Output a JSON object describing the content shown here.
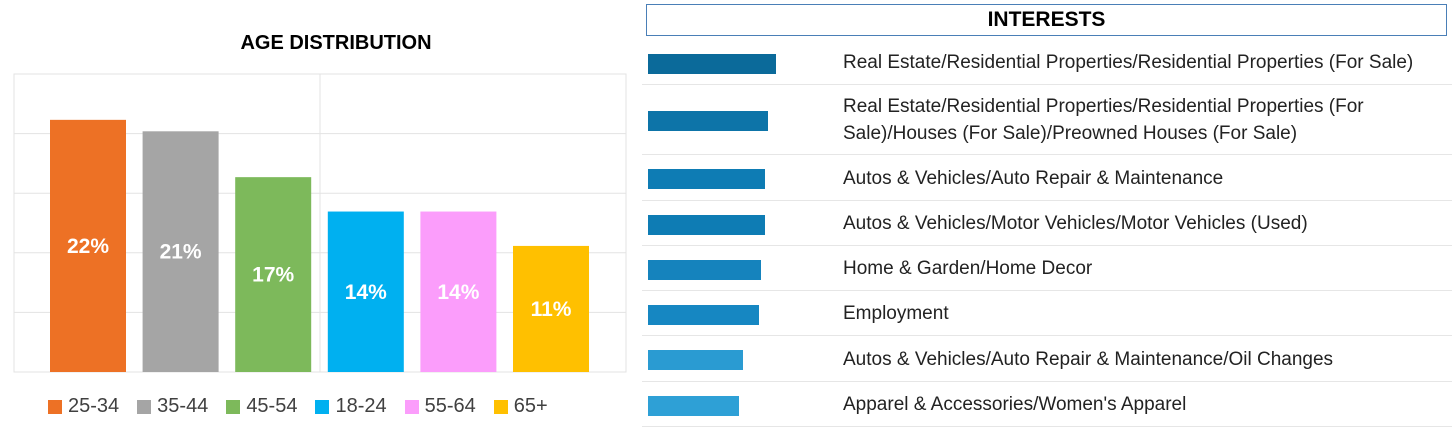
{
  "chart_data": [
    {
      "type": "bar",
      "title": "AGE DISTRIBUTION",
      "categories": [
        "25-34",
        "35-44",
        "45-54",
        "18-24",
        "55-64",
        "65+"
      ],
      "values": [
        22,
        21,
        17,
        14,
        14,
        11
      ],
      "data_labels": [
        "22%",
        "21%",
        "17%",
        "14%",
        "14%",
        "11%"
      ],
      "colors": [
        "#ed7125",
        "#a5a5a5",
        "#7db95b",
        "#00b0f0",
        "#fb9dfb",
        "#ffc000"
      ],
      "ylim": [
        0,
        26
      ],
      "grid": true,
      "legend": "bottom"
    },
    {
      "type": "bar",
      "orientation": "horizontal",
      "title": "INTERESTS",
      "categories": [
        "Real Estate/Residential Properties/Residential Properties (For Sale)",
        "Real Estate/Residential Properties/Residential Properties (For Sale)/Houses (For Sale)/Preowned Houses (For Sale)",
        "Autos & Vehicles/Auto Repair & Maintenance",
        "Autos & Vehicles/Motor Vehicles/Motor Vehicles (Used)",
        "Home & Garden/Home Decor",
        "Employment",
        "Autos & Vehicles/Auto Repair & Maintenance/Oil Changes",
        "Apparel & Accessories/Women's Apparel"
      ],
      "values": [
        128,
        120,
        117,
        117,
        113,
        111,
        95,
        91
      ],
      "colors": [
        "#0b6a9a",
        "#0d74a8",
        "#0e7cb4",
        "#0e7cb4",
        "#1583bd",
        "#1687c2",
        "#2a9bd2",
        "#2ea0d6"
      ]
    }
  ]
}
